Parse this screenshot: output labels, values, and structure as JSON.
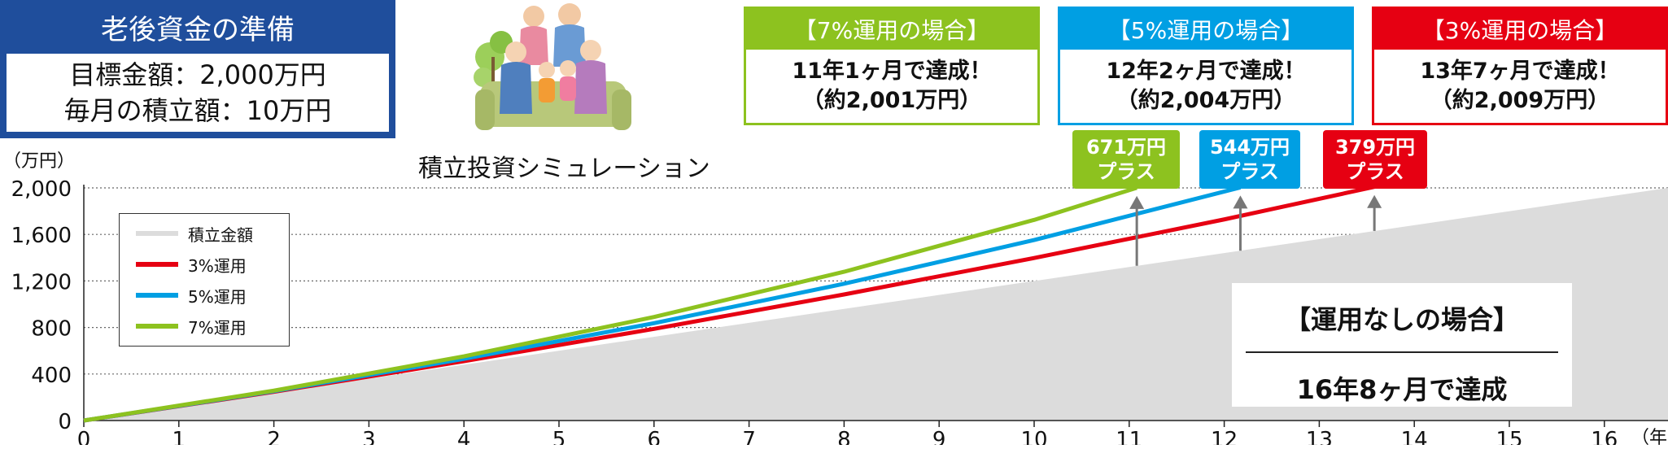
{
  "goal": {
    "title": "老後資金の準備",
    "target_line": "目標金額：2,000万円",
    "monthly_line": "毎月の積立額：10万円"
  },
  "sim_title": "積立投資シミュレーション",
  "icons": [
    "family-illustration"
  ],
  "scenarios": [
    {
      "key": "7",
      "header": "【7%運用の場合】",
      "result": "11年1ヶ月で達成！",
      "amount": "（約2,001万円）",
      "color": "#8dc21f"
    },
    {
      "key": "5",
      "header": "【5%運用の場合】",
      "result": "12年2ヶ月で達成！",
      "amount": "（約2,004万円）",
      "color": "#009fe3"
    },
    {
      "key": "3",
      "header": "【3%運用の場合】",
      "result": "13年7ヶ月で達成！",
      "amount": "（約2,009万円）",
      "color": "#e60012"
    }
  ],
  "badges": [
    {
      "amount": "671万円",
      "label": "プラス",
      "color": "#8dc21f"
    },
    {
      "amount": "544万円",
      "label": "プラス",
      "color": "#009fe3"
    },
    {
      "amount": "379万円",
      "label": "プラス",
      "color": "#e60012"
    }
  ],
  "no_investment": {
    "title": "【運用なしの場合】",
    "result": "16年8ヶ月で達成"
  },
  "legend": {
    "items": [
      {
        "label": "積立金額",
        "color": "#dcdcdc"
      },
      {
        "label": "3%運用",
        "color": "#e60012"
      },
      {
        "label": "5%運用",
        "color": "#009fe3"
      },
      {
        "label": "7%運用",
        "color": "#8dc21f"
      }
    ]
  },
  "chart_data": {
    "type": "area",
    "ylabel": "（万円）",
    "xlabel": "（年）",
    "ylim": [
      0,
      2000
    ],
    "xlim": [
      0,
      16.67
    ],
    "y_ticks": [
      0,
      400,
      800,
      1200,
      1600,
      2000
    ],
    "y_tick_labels": [
      "0",
      "400",
      "800",
      "1,200",
      "1,600",
      "2,000"
    ],
    "x_ticks": [
      0,
      1,
      2,
      3,
      4,
      5,
      6,
      7,
      8,
      9,
      10,
      11,
      12,
      13,
      14,
      15,
      16
    ],
    "grid": "horizontal-dotted",
    "series": [
      {
        "name": "積立金額",
        "style": "area",
        "x": [
          0,
          16.67
        ],
        "y": [
          0,
          2000
        ]
      },
      {
        "name": "3%運用",
        "style": "line",
        "x": [
          0,
          2,
          4,
          6,
          8,
          10,
          12,
          13.58
        ],
        "y": [
          0,
          247,
          510,
          788,
          1084,
          1397,
          1729,
          2009
        ]
      },
      {
        "name": "5%運用",
        "style": "line",
        "x": [
          0,
          2,
          4,
          6,
          8,
          10,
          12.17
        ],
        "y": [
          0,
          252,
          530,
          837,
          1176,
          1552,
          2004
        ]
      },
      {
        "name": "7%運用",
        "style": "line",
        "x": [
          0,
          2,
          4,
          6,
          8,
          10,
          11.08
        ],
        "y": [
          0,
          257,
          552,
          890,
          1279,
          1725,
          2001
        ]
      }
    ],
    "arrows": [
      {
        "x": 11.08,
        "from": 1330,
        "to": 2001
      },
      {
        "x": 12.17,
        "from": 1460,
        "to": 2004
      },
      {
        "x": 13.58,
        "from": 1630,
        "to": 2009
      }
    ]
  }
}
